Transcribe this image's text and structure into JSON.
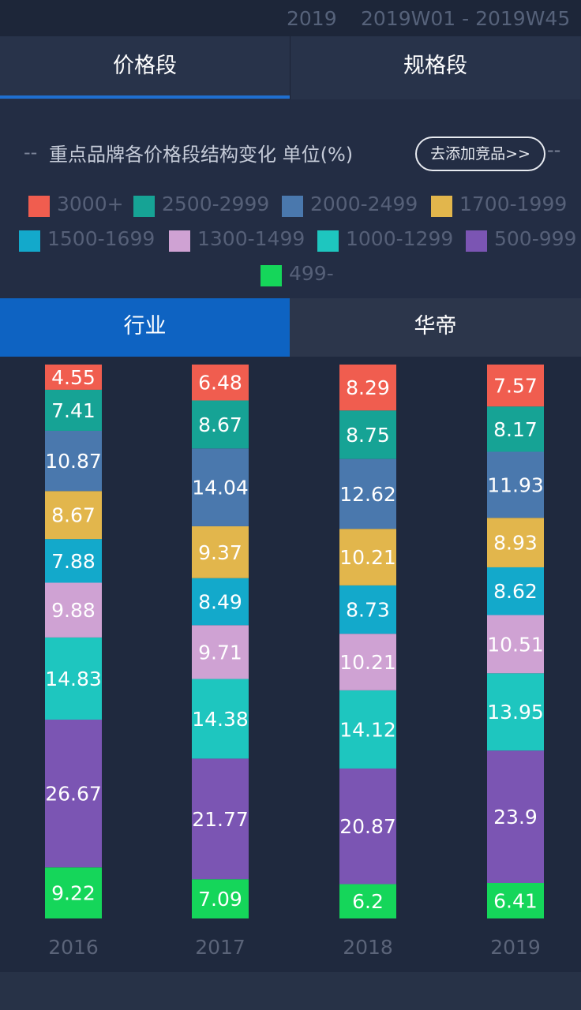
{
  "header": {
    "year": "2019",
    "week_range": "2019W01 - 2019W45"
  },
  "top_tabs": [
    {
      "label": "价格段",
      "active": true
    },
    {
      "label": "规格段",
      "active": false
    }
  ],
  "section": {
    "dash_left": "--",
    "title": "重点品牌各价格段结构变化 单位(%)",
    "add_button": "去添加竞品>>",
    "dash_right": "--"
  },
  "segment_tabs": [
    {
      "label": "行业",
      "active": true
    },
    {
      "label": "华帝",
      "active": false
    }
  ],
  "colors": {
    "accent": "#1f6fd0",
    "active_tab": "#0e63c2",
    "background": "#232d44"
  },
  "chart_data": {
    "type": "bar",
    "stacked": true,
    "orientation": "vertical",
    "title": "重点品牌各价格段结构变化 单位(%)",
    "categories": [
      "2016",
      "2017",
      "2018",
      "2019"
    ],
    "series": [
      {
        "name": "499-",
        "color": "#15d65a",
        "values": [
          9.22,
          7.09,
          6.2,
          6.41
        ]
      },
      {
        "name": "500-999",
        "color": "#7b55b3",
        "values": [
          26.67,
          21.77,
          20.87,
          23.9
        ]
      },
      {
        "name": "1000-1299",
        "color": "#1ec6bf",
        "values": [
          14.83,
          14.38,
          14.12,
          13.95
        ]
      },
      {
        "name": "1300-1499",
        "color": "#cfa2d3",
        "values": [
          9.88,
          9.71,
          10.21,
          10.51
        ]
      },
      {
        "name": "1500-1699",
        "color": "#13a9cb",
        "values": [
          7.88,
          8.49,
          8.73,
          8.62
        ]
      },
      {
        "name": "1700-1999",
        "color": "#e2b64c",
        "values": [
          8.67,
          9.37,
          10.21,
          8.93
        ]
      },
      {
        "name": "2000-2499",
        "color": "#4a78ad",
        "values": [
          10.87,
          14.04,
          12.62,
          11.93
        ]
      },
      {
        "name": "2500-2999",
        "color": "#16a395",
        "values": [
          7.41,
          8.67,
          8.75,
          8.17
        ]
      },
      {
        "name": "3000+",
        "color": "#f05d4f",
        "values": [
          4.55,
          6.48,
          8.29,
          7.57
        ]
      }
    ],
    "legend_order": [
      "3000+",
      "2500-2999",
      "2000-2499",
      "1700-1999",
      "1500-1699",
      "1300-1499",
      "1000-1299",
      "500-999",
      "499-"
    ],
    "legend_position": "top",
    "grid": false,
    "value_labels": true
  }
}
